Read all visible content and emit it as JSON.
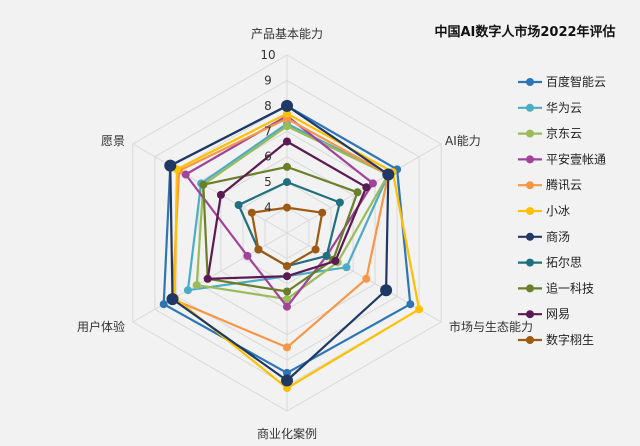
{
  "chart_data": {
    "type": "radar",
    "title": "中国AI数字人市场2022年评估",
    "axes": [
      "产品基本能力",
      "AI能力",
      "市场与生态能力",
      "商业化案例",
      "用户体验",
      "愿景"
    ],
    "ticks": [
      4,
      5,
      6,
      7,
      8,
      9,
      10
    ],
    "rmin": 3,
    "rmax": 10,
    "grid": true,
    "legend_position": "right",
    "series": [
      {
        "name": "百度智能云",
        "color": "#2e75b6",
        "marker_size": "small",
        "values": [
          8.0,
          8.0,
          8.6,
          8.5,
          8.6,
          8.3
        ]
      },
      {
        "name": "华为云",
        "color": "#4bacc6",
        "marker_size": "small",
        "values": [
          7.3,
          7.6,
          5.7,
          4.7,
          7.5,
          6.9
        ]
      },
      {
        "name": "京东云",
        "color": "#9bbb59",
        "marker_size": "small",
        "values": [
          7.2,
          7.6,
          5.3,
          5.6,
          7.1,
          6.8
        ]
      },
      {
        "name": "平安壹帐通",
        "color": "#a0449b",
        "marker_size": "small",
        "values": [
          7.6,
          6.9,
          4.8,
          5.9,
          4.8,
          7.6
        ]
      },
      {
        "name": "腾讯云",
        "color": "#f79646",
        "marker_size": "small",
        "values": [
          7.5,
          7.6,
          6.6,
          7.5,
          8.2,
          7.9
        ]
      },
      {
        "name": "小冰",
        "color": "#ffc000",
        "marker_size": "small",
        "values": [
          7.7,
          7.8,
          9.0,
          9.1,
          8.1,
          8.0
        ]
      },
      {
        "name": "商汤",
        "color": "#1f3864",
        "marker_size": "large",
        "values": [
          8.0,
          7.6,
          7.5,
          8.8,
          8.2,
          8.3
        ]
      },
      {
        "name": "拓尔思",
        "color": "#1f6f7f",
        "marker_size": "small",
        "values": [
          5.0,
          5.4,
          4.8,
          4.3,
          4.3,
          5.2
        ]
      },
      {
        "name": "追一科技",
        "color": "#6b7f2a",
        "marker_size": "small",
        "values": [
          5.6,
          6.2,
          5.1,
          5.3,
          6.6,
          6.8
        ]
      },
      {
        "name": "网易",
        "color": "#5a1a52",
        "marker_size": "small",
        "values": [
          6.6,
          6.6,
          5.2,
          4.7,
          6.6,
          6.0
        ]
      },
      {
        "name": "数字栩生",
        "color": "#9c5a12",
        "marker_size": "small",
        "values": [
          4.0,
          4.6,
          4.3,
          4.3,
          4.3,
          4.6
        ]
      }
    ]
  }
}
